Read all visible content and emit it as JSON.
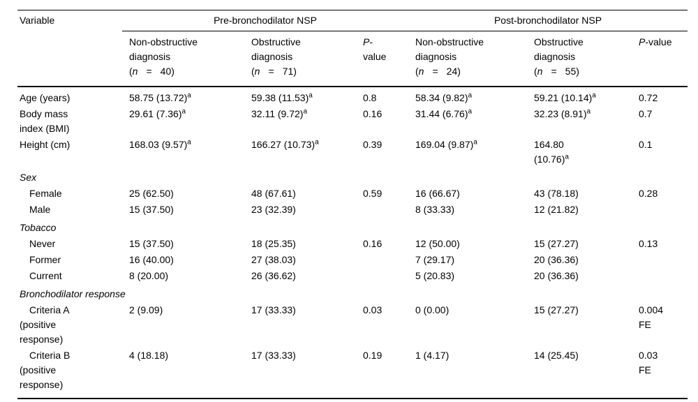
{
  "colors": {
    "background": "#ffffff",
    "text": "#000000",
    "rule": "#000000"
  },
  "table": {
    "header": {
      "variable_label": "Variable",
      "group_pre_label": "Pre-bronchodilator NSP",
      "group_post_label": "Post-bronchodilator NSP",
      "subheaders": [
        {
          "name": "column-header-pre-nonobstructive",
          "parts": [
            {
              "t": "Non-obstructive"
            },
            {
              "br": true
            },
            {
              "t": "diagnosis"
            },
            {
              "br": true
            },
            {
              "t": "("
            },
            {
              "i": "n"
            },
            {
              "t": "=",
              "cls": "eq"
            },
            {
              "t": "40)"
            }
          ]
        },
        {
          "name": "column-header-pre-obstructive",
          "parts": [
            {
              "t": "Obstructive"
            },
            {
              "br": true
            },
            {
              "t": "diagnosis"
            },
            {
              "br": true
            },
            {
              "t": "("
            },
            {
              "i": "n"
            },
            {
              "t": "=",
              "cls": "eq"
            },
            {
              "t": "71)"
            }
          ]
        },
        {
          "name": "column-header-pre-pvalue",
          "parts": [
            {
              "i": "P"
            },
            {
              "t": "-"
            },
            {
              "br": true
            },
            {
              "t": "value"
            }
          ]
        },
        {
          "name": "column-header-post-nonobstructive",
          "parts": [
            {
              "t": "Non-obstructive"
            },
            {
              "br": true
            },
            {
              "t": "diagnosis"
            },
            {
              "br": true
            },
            {
              "t": "("
            },
            {
              "i": "n"
            },
            {
              "t": "=",
              "cls": "eq"
            },
            {
              "t": "24)"
            }
          ]
        },
        {
          "name": "column-header-post-obstructive",
          "parts": [
            {
              "t": "Obstructive"
            },
            {
              "br": true
            },
            {
              "t": "diagnosis"
            },
            {
              "br": true
            },
            {
              "t": "("
            },
            {
              "i": "n"
            },
            {
              "t": "=",
              "cls": "eq"
            },
            {
              "t": "55)"
            }
          ]
        },
        {
          "name": "column-header-post-pvalue",
          "parts": [
            {
              "i": "P"
            },
            {
              "t": "-value"
            }
          ]
        }
      ]
    },
    "rows": [
      {
        "kind": "data",
        "label": "Age (years)",
        "cells": [
          "58.75 (13.72)^a",
          "59.38 (11.53)^a",
          "0.8",
          "58.34 (9.82)^a",
          "59.21 (10.14)^a",
          "0.72"
        ]
      },
      {
        "kind": "data",
        "label": "Body mass\nindex (BMI)",
        "cells": [
          "29.61 (7.36)^a",
          "32.11 (9.72)^a",
          "0.16",
          "31.44 (6.76)^a",
          "32.23 (8.91)^a",
          "0.7"
        ]
      },
      {
        "kind": "data",
        "label": "Height (cm)",
        "cells": [
          "168.03 (9.57)^a",
          "166.27 (10.73)^a",
          "0.39",
          "169.04 (9.87)^a",
          "164.80\n(10.76)^a",
          "0.1"
        ]
      },
      {
        "kind": "section",
        "label": "Sex"
      },
      {
        "kind": "sub",
        "label": "Female",
        "cells": [
          "25 (62.50)",
          "48 (67.61)",
          "0.59",
          "16 (66.67)",
          "43 (78.18)",
          "0.28"
        ]
      },
      {
        "kind": "sub",
        "label": "Male",
        "cells": [
          "15 (37.50)",
          "23 (32.39)",
          "",
          "8 (33.33)",
          "12 (21.82)",
          ""
        ]
      },
      {
        "kind": "section",
        "label": "Tobacco"
      },
      {
        "kind": "sub",
        "label": "Never",
        "cells": [
          "15 (37.50)",
          "18 (25.35)",
          "0.16",
          "12 (50.00)",
          "15 (27.27)",
          "0.13"
        ]
      },
      {
        "kind": "sub",
        "label": "Former",
        "cells": [
          "16 (40.00)",
          "27 (38.03)",
          "",
          "7 (29.17)",
          "20 (36.36)",
          ""
        ]
      },
      {
        "kind": "sub",
        "label": "Current",
        "cells": [
          "8 (20.00)",
          "26 (36.62)",
          "",
          "5 (20.83)",
          "20 (36.36)",
          ""
        ]
      },
      {
        "kind": "section",
        "label": "Bronchodilator response"
      },
      {
        "kind": "sub",
        "label": "Criteria A\n(positive\nresponse)",
        "cells": [
          "2 (9.09)",
          "17 (33.33)",
          "0.03",
          "0 (0.00)",
          "15 (27.27)",
          "0.004\nFE"
        ]
      },
      {
        "kind": "sub",
        "label": "Criteria B\n(positive\nresponse)",
        "cells": [
          "4 (18.18)",
          "17 (33.33)",
          "0.19",
          "1 (4.17)",
          "14 (25.45)",
          "0.03\nFE"
        ]
      }
    ]
  }
}
